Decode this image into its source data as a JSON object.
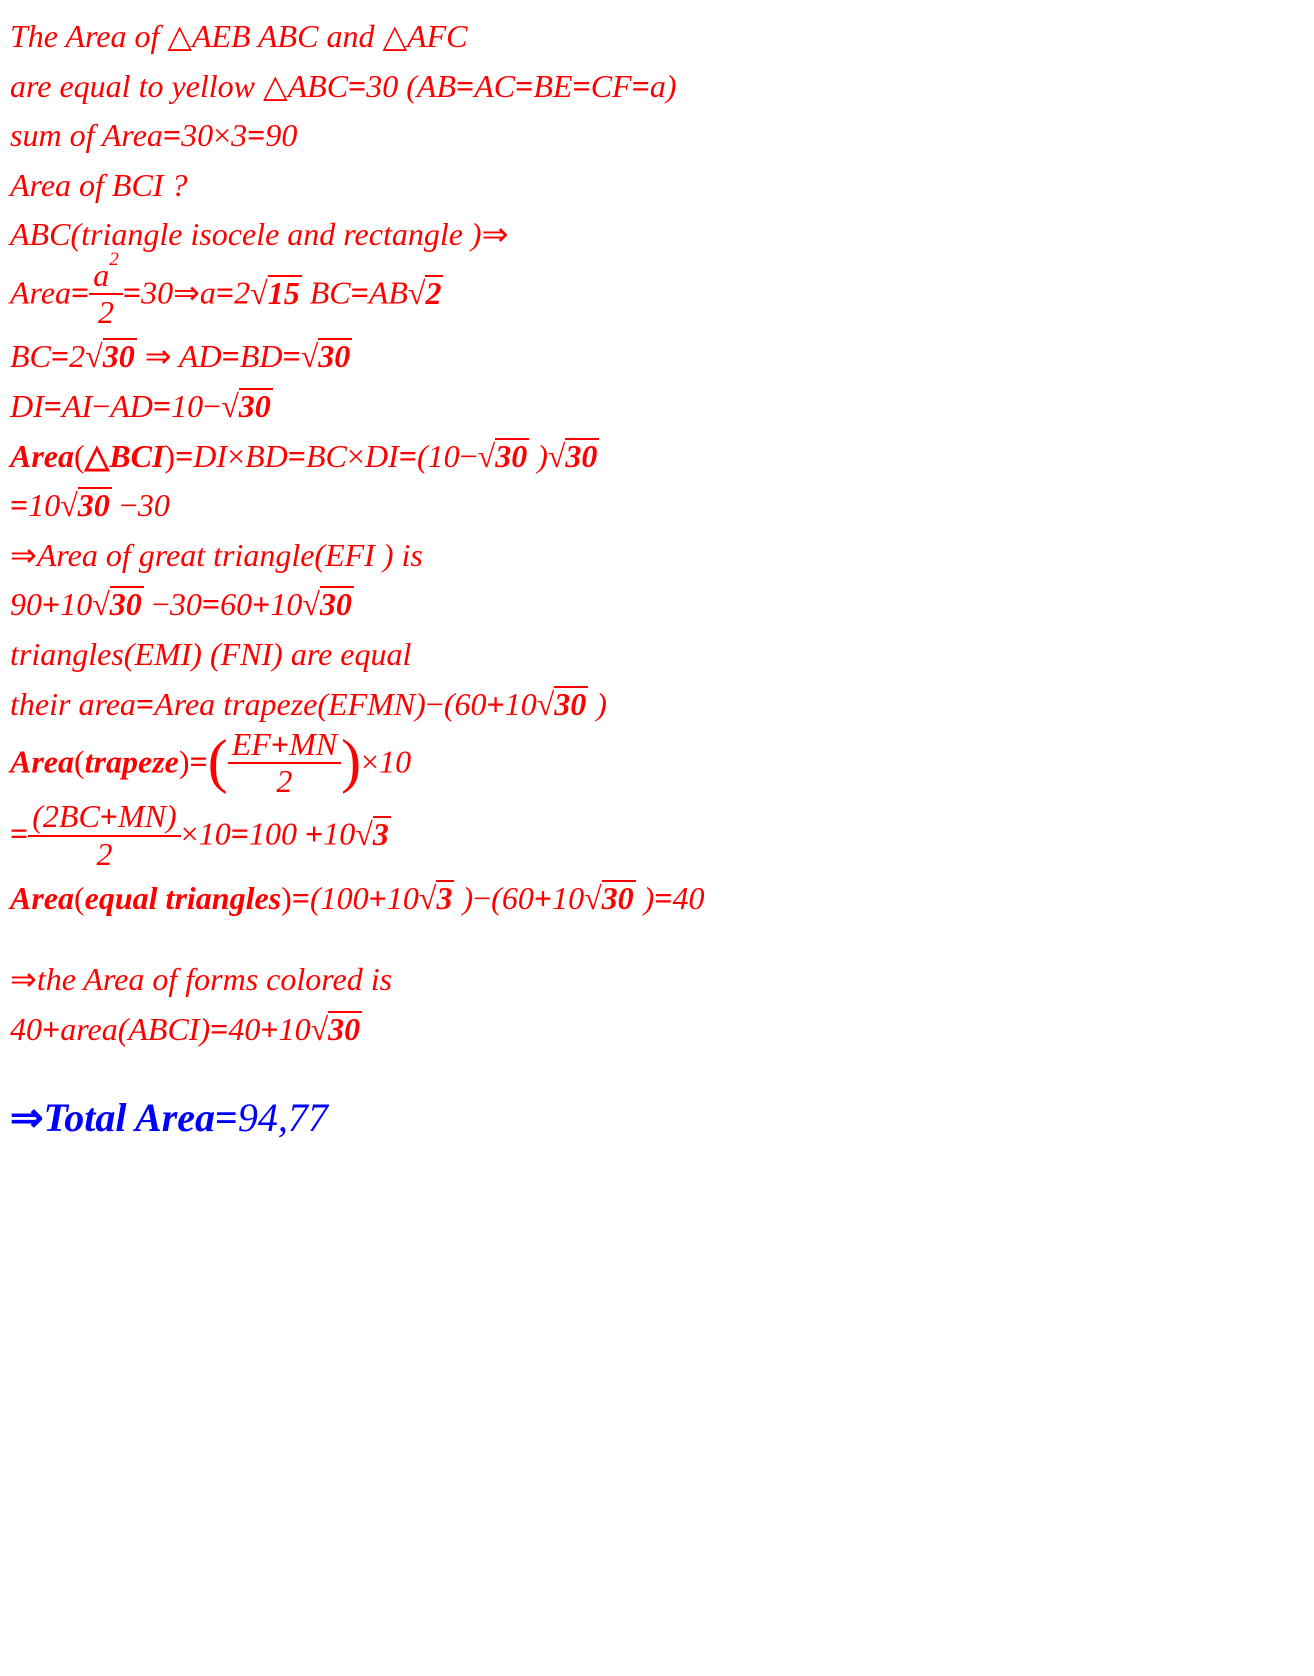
{
  "colors": {
    "red": "#ff0000",
    "blue": "#0000ff",
    "text": "#000000",
    "bg": "#ffffff"
  },
  "typography": {
    "font_family": "Times New Roman",
    "font_style": "italic",
    "body_size_pt": 24,
    "big_size_pt": 30
  },
  "lines": {
    "l1a": "The Area of  ",
    "l1b": "AEB  ABC and ",
    "l1c": "AFC",
    "l2a": "are equal to  yellow ",
    "l2b": "ABC",
    "l2c": "30 (AB",
    "l2d": "AC",
    "l2e": "BE",
    "l2f": "CF",
    "l2g": "a)",
    "l3a": "sum of Area",
    "l3b": "30",
    "l3c": "3",
    "l3d": "90",
    "l4": "Area of BCI  ?",
    "l5a": "ABC(triangle isocele and rectangle  )",
    "l6a": "Area",
    "l6num": "a",
    "l6den": "2",
    "l6b": "30",
    "l6c": "a",
    "l6d": "2",
    "l6rad1": "15",
    "l6e": "   BC",
    "l6f": "AB",
    "l6rad2": "2",
    "l7a": "BC",
    "l7b": "2",
    "l7rad1": "30",
    "l7c": " AD",
    "l7d": "BD",
    "l7rad2": "30",
    "l8a": "DI",
    "l8b": "AI",
    "l8c": "AD",
    "l8d": "10",
    "l8rad": "30",
    "l9a": "Area",
    "l9b": "BCI",
    "l9c": "DI",
    "l9d": "BD",
    "l9e": "BC",
    "l9f": "DI",
    "l9g": "(10",
    "l9rad1": "30",
    "l9h": " )",
    "l9rad2": "30",
    "l10a": "10",
    "l10rad": "30",
    "l10b": "30",
    "l11a": "Area of great triangle(EFI ) is",
    "l12a": "90",
    "l12b": "10",
    "l12rad1": "30",
    "l12c": "30",
    "l12d": "60",
    "l12e": "10",
    "l12rad2": "30",
    "l13": "triangles(EMI)  (FNI) are equal",
    "l14a": "their area",
    "l14b": "Area trapeze(EFMN)",
    "l14c": "(60",
    "l14d": "10",
    "l14rad": "30",
    "l14e": " )",
    "l15a": "Area",
    "l15b": "trapeze",
    "l15num1": "EF",
    "l15num2": "MN",
    "l15den": "2",
    "l15c": "10",
    "l16num": "(2BC",
    "l16num2": "MN)",
    "l16den": "2",
    "l16a": "10",
    "l16b": "100 ",
    "l16c": "10",
    "l16rad": "3",
    "l17a": "Area",
    "l17b": "equal triangles",
    "l17c": "(100",
    "l17d": "10",
    "l17rad1": "3",
    "l17e": " )",
    "l17f": "(60",
    "l17g": "10",
    "l17rad2": "30",
    "l17h": " )",
    "l17i": "40",
    "l18a": "the Area of  forms colored is",
    "l19a": "40",
    "l19b": "area(ABCI)",
    "l19c": "40",
    "l19d": "10",
    "l19rad": "30",
    "l20a": "Total  Area",
    "l20b": "94,77"
  },
  "ops": {
    "tri": "△",
    "eq": "=",
    "times": "×",
    "rarr": "⇒",
    "minus": "−",
    "plus": "+",
    "rarr2": "⇒"
  }
}
